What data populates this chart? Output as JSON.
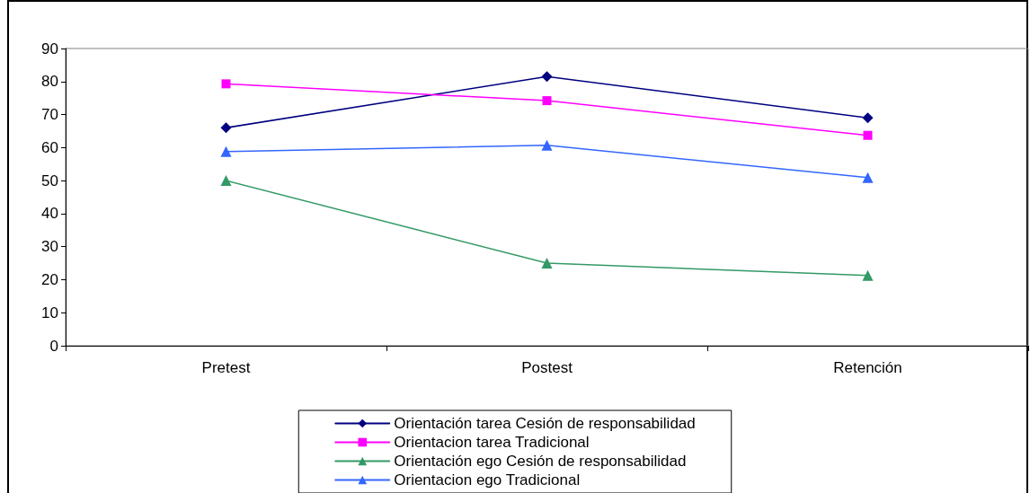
{
  "chart_data": {
    "type": "line",
    "categories": [
      "Pretest",
      "Postest",
      "Retención"
    ],
    "series": [
      {
        "name": "Orientación tarea Cesión de responsabilidad",
        "color": "#000080",
        "marker": "diamond",
        "values": [
          66,
          81.5,
          69
        ]
      },
      {
        "name": "Orientacion tarea Tradicional",
        "color": "#ff00ff",
        "marker": "square",
        "values": [
          79.3,
          74.2,
          63.7
        ]
      },
      {
        "name": "Orientación ego Cesión de responsabilidad",
        "color": "#339966",
        "marker": "triangle",
        "values": [
          50,
          25,
          21.3
        ]
      },
      {
        "name": "Orientacion ego Tradicional",
        "color": "#3366ff",
        "marker": "triangle",
        "values": [
          58.8,
          60.7,
          50.9
        ]
      }
    ],
    "ylim": [
      0,
      90
    ],
    "yticks": [
      0,
      10,
      20,
      30,
      40,
      50,
      60,
      70,
      80,
      90
    ],
    "grid": false,
    "legend": "bottom",
    "line_style": "solid"
  }
}
